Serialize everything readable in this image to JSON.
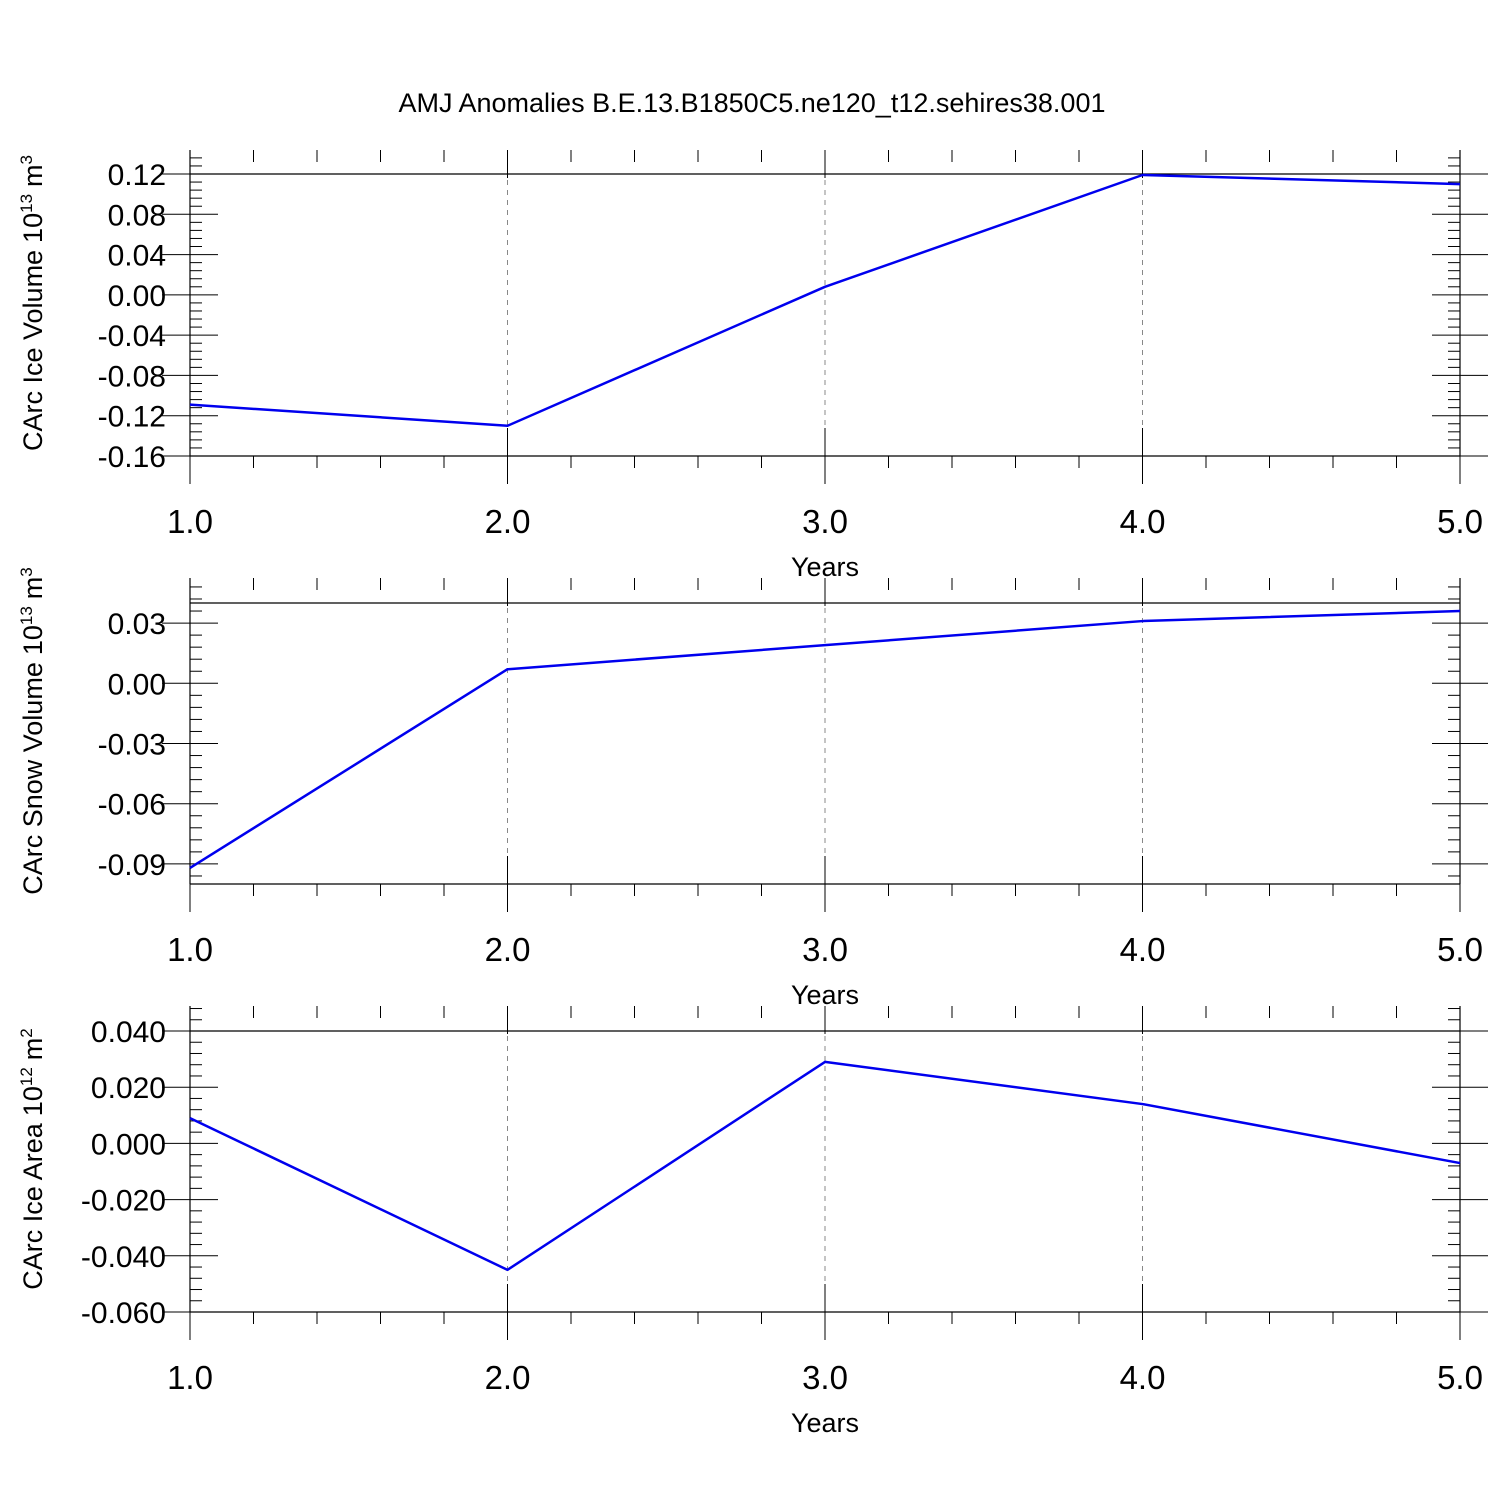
{
  "title": "AMJ Anomalies B.E.13.B1850C5.ne120_t12.sehires38.001",
  "colors": {
    "line": "#0000ee",
    "axis": "#000000",
    "grid": "#888888"
  },
  "chart_data": [
    {
      "type": "line",
      "ylabel": "CArc Ice Volume",
      "ylabel_pow": "10",
      "ylabel_exp": "13",
      "ylabel_unit": "m",
      "ylabel_unit_exp": "3",
      "xlabel": "Years",
      "xlim": [
        1.0,
        5.0
      ],
      "xticks": [
        "1.0",
        "2.0",
        "3.0",
        "4.0",
        "5.0"
      ],
      "ylim": [
        -0.16,
        0.12
      ],
      "yticks": [
        -0.16,
        -0.12,
        -0.08,
        -0.04,
        0.0,
        0.04,
        0.08,
        0.12
      ],
      "ytick_labels": [
        "-0.16",
        "-0.12",
        "-0.08",
        "-0.04",
        "0.00",
        "0.04",
        "0.08",
        "0.12"
      ],
      "x": [
        1,
        2,
        3,
        4,
        5
      ],
      "values": [
        -0.109,
        -0.13,
        0.008,
        0.119,
        0.11
      ]
    },
    {
      "type": "line",
      "ylabel": "CArc Snow Volume",
      "ylabel_pow": "10",
      "ylabel_exp": "13",
      "ylabel_unit": "m",
      "ylabel_unit_exp": "3",
      "xlabel": "Years",
      "xlim": [
        1.0,
        5.0
      ],
      "xticks": [
        "1.0",
        "2.0",
        "3.0",
        "4.0",
        "5.0"
      ],
      "ylim": [
        -0.1,
        0.04
      ],
      "yticks": [
        -0.09,
        -0.06,
        -0.03,
        0.0,
        0.03
      ],
      "ytick_labels": [
        "-0.09",
        "-0.06",
        "-0.03",
        "0.00",
        "0.03"
      ],
      "x": [
        1,
        2,
        3,
        4,
        5
      ],
      "values": [
        -0.092,
        0.007,
        0.019,
        0.031,
        0.036
      ]
    },
    {
      "type": "line",
      "ylabel": "CArc Ice Area",
      "ylabel_pow": "10",
      "ylabel_exp": "12",
      "ylabel_unit": "m",
      "ylabel_unit_exp": "2",
      "xlabel": "Years",
      "xlim": [
        1.0,
        5.0
      ],
      "xticks": [
        "1.0",
        "2.0",
        "3.0",
        "4.0",
        "5.0"
      ],
      "ylim": [
        -0.06,
        0.04
      ],
      "yticks": [
        -0.06,
        -0.04,
        -0.02,
        0.0,
        0.02,
        0.04
      ],
      "ytick_labels": [
        "-0.060",
        "-0.040",
        "-0.020",
        "0.000",
        "0.020",
        "0.040"
      ],
      "x": [
        1,
        2,
        3,
        4,
        5
      ],
      "values": [
        0.009,
        -0.045,
        0.029,
        0.014,
        -0.007
      ]
    }
  ]
}
